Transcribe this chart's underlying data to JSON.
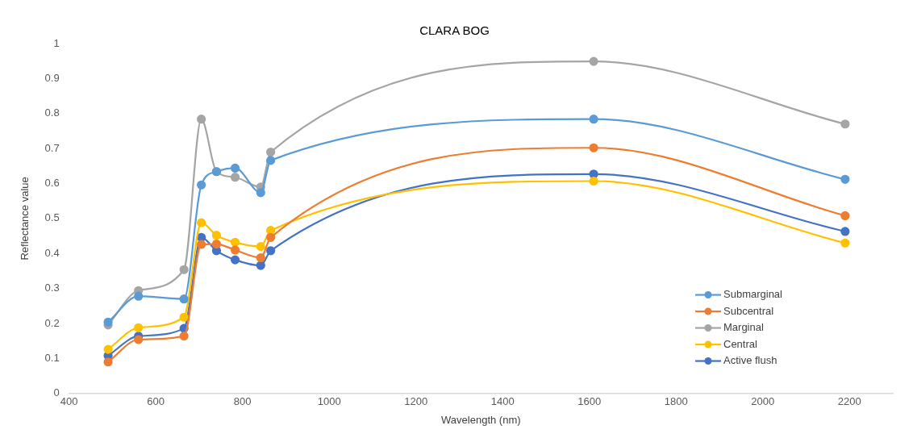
{
  "chart_data": {
    "type": "line",
    "title": "CLARA BOG",
    "xlabel": "Wavelength (nm)",
    "ylabel": "Reflectance value",
    "x": [
      490,
      560,
      665,
      705,
      740,
      783,
      842,
      865,
      1610,
      2190
    ],
    "series": [
      {
        "name": "Submarginal",
        "color": "#5b9bd5",
        "values": [
          0.204,
          0.278,
          0.27,
          0.596,
          0.634,
          0.644,
          0.574,
          0.666,
          0.784,
          0.612
        ]
      },
      {
        "name": "Subcentral",
        "color": "#ed7d31",
        "values": [
          0.09,
          0.154,
          0.164,
          0.426,
          0.427,
          0.41,
          0.388,
          0.446,
          0.702,
          0.508
        ]
      },
      {
        "name": "Marginal",
        "color": "#a5a5a5",
        "values": [
          0.196,
          0.294,
          0.354,
          0.784,
          0.634,
          0.618,
          0.59,
          0.69,
          0.949,
          0.77
        ]
      },
      {
        "name": "Central",
        "color": "#ffc000",
        "values": [
          0.126,
          0.188,
          0.218,
          0.488,
          0.452,
          0.432,
          0.42,
          0.466,
          0.607,
          0.43
        ]
      },
      {
        "name": "Active flush",
        "color": "#4472c4",
        "values": [
          0.108,
          0.164,
          0.186,
          0.446,
          0.408,
          0.382,
          0.366,
          0.408,
          0.627,
          0.463
        ]
      }
    ],
    "xlim": [
      400,
      2300
    ],
    "xticks": [
      400,
      600,
      800,
      1000,
      1200,
      1400,
      1600,
      1800,
      2000,
      2200
    ],
    "ylim": [
      0,
      1
    ],
    "yticks": [
      0,
      0.1,
      0.2,
      0.3,
      0.4,
      0.5,
      0.6,
      0.7,
      0.8,
      0.9,
      1
    ],
    "grid": false,
    "legend": "bottom right",
    "marker": "circle",
    "line_style": "solid"
  }
}
